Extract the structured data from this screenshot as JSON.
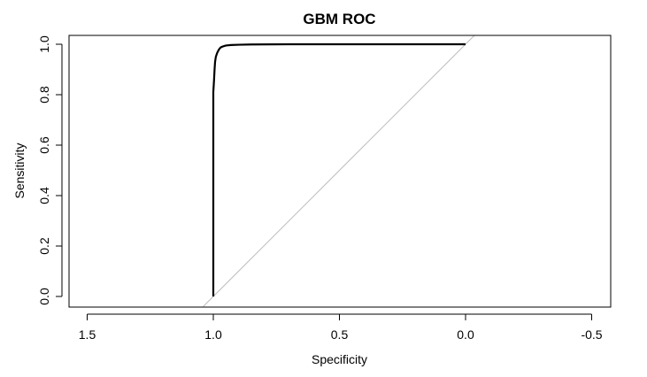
{
  "chart_data": {
    "type": "line",
    "title": "GBM ROC",
    "xlabel": "Specificity",
    "ylabel": "Sensitivity",
    "x_reversed": true,
    "xlim": [
      1.5,
      -0.5
    ],
    "ylim": [
      0.0,
      1.0
    ],
    "x_ticks": [
      1.5,
      1.0,
      0.5,
      0.0,
      -0.5
    ],
    "x_tick_labels": [
      "1.5",
      "1.0",
      "0.5",
      "0.0",
      "-0.5"
    ],
    "y_ticks": [
      0.0,
      0.2,
      0.4,
      0.6,
      0.8,
      1.0
    ],
    "y_tick_labels": [
      "0.0",
      "0.2",
      "0.4",
      "0.6",
      "0.8",
      "1.0"
    ],
    "grid": false,
    "legend": "none",
    "series": [
      {
        "role": "roc-curve",
        "color": "#000000",
        "x": [
          1.0,
          1.0,
          0.997,
          0.995,
          0.993,
          0.99,
          0.985,
          0.98,
          0.975,
          0.97,
          0.96,
          0.95,
          0.93,
          0.9,
          0.85,
          0.7,
          0.5,
          0.3,
          0.1,
          0.0
        ],
        "y": [
          0.0,
          0.81,
          0.86,
          0.9,
          0.93,
          0.95,
          0.965,
          0.975,
          0.983,
          0.988,
          0.992,
          0.995,
          0.997,
          0.998,
          0.999,
          1.0,
          1.0,
          1.0,
          1.0,
          1.0
        ]
      },
      {
        "role": "reference-diagonal",
        "color": "#bebebe",
        "x": [
          1.04,
          -0.04
        ],
        "y": [
          -0.04,
          1.04
        ]
      }
    ]
  }
}
